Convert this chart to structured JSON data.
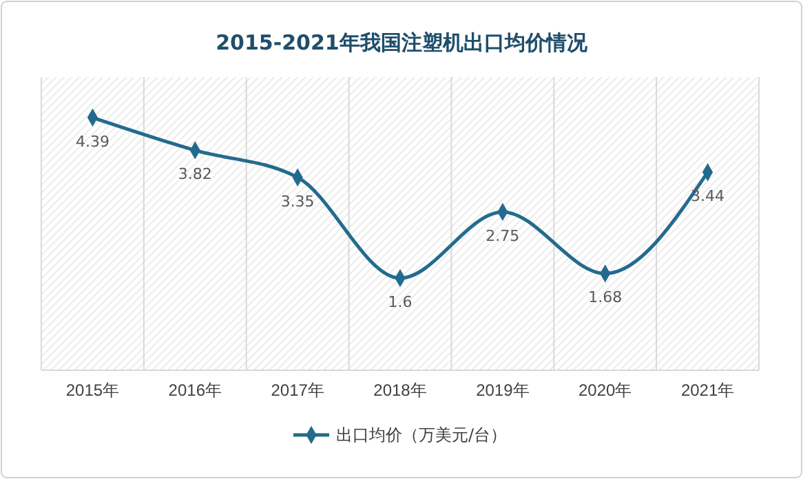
{
  "chart_data": {
    "type": "line",
    "title": "2015-2021年我国注塑机出口均价情况",
    "categories": [
      "2015年",
      "2016年",
      "2017年",
      "2018年",
      "2019年",
      "2020年",
      "2021年"
    ],
    "series": [
      {
        "name": "出口均价（万美元/台）",
        "color": "#236b8e",
        "values": [
          4.39,
          3.82,
          3.35,
          1.6,
          2.75,
          1.68,
          3.44
        ]
      }
    ],
    "data_labels": true,
    "marker": "diamond",
    "line_style": "solid",
    "grid": "x",
    "legend": "bottom"
  }
}
